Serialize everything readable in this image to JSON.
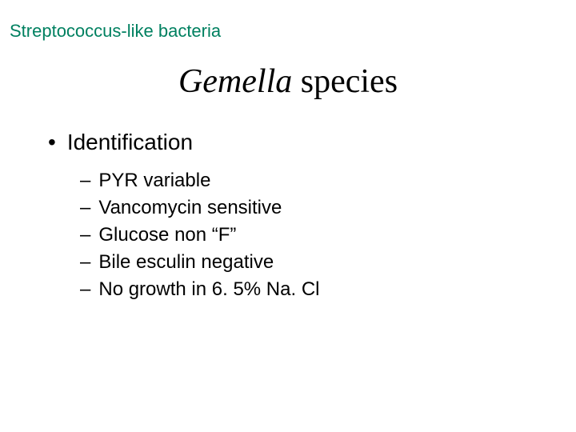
{
  "category": {
    "text": "Streptococcus-like bacteria",
    "color": "#008060"
  },
  "title": {
    "genus": "Gemella",
    "rest": " species"
  },
  "bullet": {
    "marker": "•",
    "label": "Identification"
  },
  "sub": {
    "marker": "–",
    "items": [
      "PYR variable",
      "Vancomycin sensitive",
      "Glucose non “F”",
      "Bile esculin negative",
      "No growth in 6. 5% Na. Cl"
    ]
  }
}
